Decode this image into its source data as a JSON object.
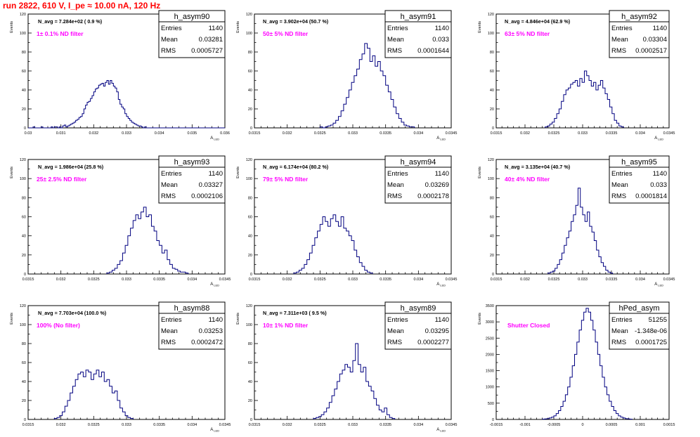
{
  "page": {
    "title": "run 2822,   610 V, I_pe ≈ 10.00 nA, 120 Hz"
  },
  "colors": {
    "title": "#ff0000",
    "annotation": "#ff00ff",
    "histogram_line": "#000080",
    "axis": "#000000"
  },
  "chart_data": [
    {
      "type": "histogram",
      "name": "h_asym90",
      "stats": {
        "Entries": "1140",
        "Mean": "0.03281",
        "RMS": "0.0005727"
      },
      "navg": "N_avg = 7.284e+02 ( 0.9 %)",
      "label": "1± 0.1% ND filter",
      "ylabel": "Events",
      "xlabel": "A_LED",
      "xlim": [
        0.03,
        0.036
      ],
      "ylim": [
        0,
        120
      ],
      "xticks": [
        "0.03",
        "0.031",
        "0.032",
        "0.033",
        "0.034",
        "0.035",
        "0.036"
      ],
      "yticks": [
        "0",
        "20",
        "40",
        "60",
        "80",
        "100",
        "120"
      ],
      "bins": {
        "start": 0.03,
        "width": 5e-05,
        "counts": [
          0,
          0,
          0,
          1,
          0,
          0,
          0,
          0,
          1,
          0,
          0,
          0,
          0,
          0,
          1,
          0,
          1,
          1,
          0,
          1,
          0,
          2,
          3,
          1,
          2,
          3,
          4,
          5,
          6,
          8,
          9,
          11,
          12,
          15,
          20,
          24,
          27,
          28,
          31,
          34,
          38,
          41,
          42,
          45,
          46,
          47,
          44,
          48,
          50,
          46,
          50,
          47,
          44,
          42,
          38,
          30,
          25,
          22,
          20,
          15,
          12,
          10,
          8,
          6,
          5,
          4,
          3,
          2,
          2,
          1,
          0,
          1,
          0,
          0,
          0,
          0,
          0,
          0,
          0,
          0,
          0,
          0,
          0,
          0,
          0,
          0,
          0,
          0,
          0,
          0,
          0,
          0,
          0,
          0,
          0,
          0,
          0,
          0,
          0,
          0,
          0,
          0,
          0,
          0,
          0,
          0,
          0,
          0,
          0,
          0,
          0,
          0,
          0,
          0,
          0,
          0,
          0,
          0,
          0,
          0
        ]
      }
    },
    {
      "type": "histogram",
      "name": "h_asym91",
      "stats": {
        "Entries": "1140",
        "Mean": "0.033",
        "RMS": "0.0001644"
      },
      "navg": "N_avg = 3.902e+04 (50.7 %)",
      "label": "50± 5% ND filter",
      "ylabel": "Events",
      "xlabel": "A_LED",
      "xlim": [
        0.0315,
        0.0345
      ],
      "ylim": [
        0,
        120
      ],
      "xticks": [
        "0.0315",
        "0.032",
        "0.0325",
        "0.033",
        "0.0335",
        "0.034",
        "0.0345"
      ],
      "yticks": [
        "0",
        "20",
        "40",
        "60",
        "80",
        "100",
        "120"
      ],
      "bins": {
        "start": 0.0325,
        "width": 4e-05,
        "counts": [
          1,
          0,
          1,
          2,
          3,
          5,
          8,
          12,
          18,
          25,
          32,
          40,
          48,
          55,
          62,
          72,
          78,
          89,
          84,
          70,
          76,
          65,
          70,
          60,
          55,
          45,
          38,
          30,
          22,
          15,
          10,
          6,
          3,
          2,
          1,
          1
        ]
      }
    },
    {
      "type": "histogram",
      "name": "h_asym92",
      "stats": {
        "Entries": "1140",
        "Mean": "0.03304",
        "RMS": "0.0002517"
      },
      "navg": "N_avg = 4.846e+04 (62.9 %)",
      "label": "63± 5% ND filter",
      "ylabel": "Events",
      "xlabel": "A_LED",
      "xlim": [
        0.0315,
        0.0345
      ],
      "ylim": [
        0,
        120
      ],
      "xticks": [
        "0.0315",
        "0.032",
        "0.0325",
        "0.033",
        "0.0335",
        "0.034",
        "0.0345"
      ],
      "yticks": [
        "0",
        "20",
        "40",
        "60",
        "80",
        "100",
        "120"
      ],
      "bins": {
        "start": 0.03235,
        "width": 4e-05,
        "counts": [
          1,
          2,
          4,
          6,
          10,
          15,
          20,
          28,
          35,
          40,
          42,
          46,
          48,
          50,
          44,
          52,
          48,
          60,
          55,
          50,
          44,
          48,
          40,
          45,
          50,
          42,
          36,
          30,
          22,
          15,
          8,
          5,
          2,
          1
        ]
      }
    },
    {
      "type": "histogram",
      "name": "h_asym93",
      "stats": {
        "Entries": "1140",
        "Mean": "0.03327",
        "RMS": "0.0002106"
      },
      "navg": "N_avg = 1.986e+04 (25.8 %)",
      "label": "25± 2.5% ND filter",
      "ylabel": "Events",
      "xlabel": "A_LED",
      "xlim": [
        0.0315,
        0.0345
      ],
      "ylim": [
        0,
        120
      ],
      "xticks": [
        "0.0315",
        "0.032",
        "0.0325",
        "0.033",
        "0.0335",
        "0.034",
        "0.0345"
      ],
      "yticks": [
        "0",
        "20",
        "40",
        "60",
        "80",
        "100",
        "120"
      ],
      "bins": {
        "start": 0.0327,
        "width": 4e-05,
        "counts": [
          1,
          2,
          4,
          6,
          10,
          14,
          22,
          30,
          40,
          48,
          56,
          62,
          58,
          65,
          70,
          60,
          62,
          50,
          45,
          35,
          30,
          22,
          25,
          15,
          10,
          6,
          5,
          3,
          2,
          2,
          1
        ]
      }
    },
    {
      "type": "histogram",
      "name": "h_asym94",
      "stats": {
        "Entries": "1140",
        "Mean": "0.03269",
        "RMS": "0.0002178"
      },
      "navg": "N_avg = 6.174e+04 (80.2 %)",
      "label": "79± 5% ND filter",
      "ylabel": "Events",
      "xlabel": "A_LED",
      "xlim": [
        0.0315,
        0.0345
      ],
      "ylim": [
        0,
        120
      ],
      "xticks": [
        "0.0315",
        "0.032",
        "0.0325",
        "0.033",
        "0.0335",
        "0.034",
        "0.0345"
      ],
      "yticks": [
        "0",
        "20",
        "40",
        "60",
        "80",
        "100",
        "120"
      ],
      "bins": {
        "start": 0.0321,
        "width": 4e-05,
        "counts": [
          1,
          2,
          4,
          6,
          10,
          15,
          22,
          30,
          38,
          45,
          52,
          60,
          55,
          50,
          58,
          62,
          55,
          50,
          60,
          48,
          45,
          40,
          35,
          25,
          18,
          12,
          8,
          4,
          2,
          1
        ]
      }
    },
    {
      "type": "histogram",
      "name": "h_asym95",
      "stats": {
        "Entries": "1140",
        "Mean": "0.033",
        "RMS": "0.0001814"
      },
      "navg": "N_avg = 3.135e+04 (40.7 %)",
      "label": "40± 4% ND filter",
      "ylabel": "Events",
      "xlabel": "A_LED",
      "xlim": [
        0.0315,
        0.0345
      ],
      "ylim": [
        0,
        120
      ],
      "xticks": [
        "0.0315",
        "0.032",
        "0.0325",
        "0.033",
        "0.0335",
        "0.034",
        "0.0345"
      ],
      "yticks": [
        "0",
        "20",
        "40",
        "60",
        "80",
        "100",
        "120"
      ],
      "bins": {
        "start": 0.0324,
        "width": 4e-05,
        "counts": [
          1,
          2,
          3,
          6,
          10,
          15,
          22,
          30,
          38,
          45,
          55,
          62,
          72,
          90,
          70,
          62,
          55,
          65,
          50,
          44,
          35,
          25,
          18,
          12,
          8,
          4,
          2,
          1
        ]
      }
    },
    {
      "type": "histogram",
      "name": "h_asym88",
      "stats": {
        "Entries": "1140",
        "Mean": "0.03253",
        "RMS": "0.0002472"
      },
      "navg": "N_avg = 7.703e+04 (100.0 %)",
      "label": "100% (No filter)",
      "ylabel": "Events",
      "xlabel": "A_LED",
      "xlim": [
        0.0315,
        0.0345
      ],
      "ylim": [
        0,
        120
      ],
      "xticks": [
        "0.0315",
        "0.032",
        "0.0325",
        "0.033",
        "0.0335",
        "0.034",
        "0.0345"
      ],
      "yticks": [
        "0",
        "20",
        "40",
        "60",
        "80",
        "100",
        "120"
      ],
      "bins": {
        "start": 0.0319,
        "width": 4e-05,
        "counts": [
          1,
          2,
          4,
          8,
          14,
          20,
          28,
          35,
          42,
          48,
          50,
          45,
          52,
          50,
          42,
          48,
          52,
          45,
          50,
          40,
          42,
          35,
          28,
          30,
          20,
          12,
          8,
          4,
          2,
          1
        ]
      }
    },
    {
      "type": "histogram",
      "name": "h_asym89",
      "stats": {
        "Entries": "1140",
        "Mean": "0.03295",
        "RMS": "0.0002277"
      },
      "navg": "N_avg = 7.311e+03 ( 9.5 %)",
      "label": "10± 1% ND filter",
      "ylabel": "Events",
      "xlabel": "A_LED",
      "xlim": [
        0.0315,
        0.0345
      ],
      "ylim": [
        0,
        120
      ],
      "xticks": [
        "0.0315",
        "0.032",
        "0.0325",
        "0.033",
        "0.0335",
        "0.034",
        "0.0345"
      ],
      "yticks": [
        "0",
        "20",
        "40",
        "60",
        "80",
        "100",
        "120"
      ],
      "bins": {
        "start": 0.0324,
        "width": 4e-05,
        "counts": [
          1,
          2,
          3,
          5,
          8,
          12,
          18,
          25,
          32,
          40,
          48,
          52,
          58,
          55,
          50,
          62,
          80,
          58,
          50,
          55,
          40,
          35,
          30,
          22,
          15,
          10,
          8,
          12,
          5,
          2,
          1
        ]
      }
    },
    {
      "type": "histogram",
      "name": "hPed_asym",
      "stats": {
        "Entries": "51255",
        "Mean": "-1.348e-06",
        "RMS": "0.0001725"
      },
      "navg": "",
      "label": "Shutter Closed",
      "ylabel": "Events",
      "xlabel": "",
      "xlim": [
        -0.0015,
        0.0015
      ],
      "ylim": [
        0,
        3500
      ],
      "xticks": [
        "-0.0015",
        "-0.001",
        "-0.0005",
        "0",
        "0.0005",
        "0.001",
        "0.0015"
      ],
      "yticks": [
        "0",
        "500",
        "1000",
        "1500",
        "2000",
        "2500",
        "3000",
        "3500"
      ],
      "bins": {
        "start": -0.0007,
        "width": 4e-05,
        "counts": [
          8,
          15,
          25,
          45,
          70,
          110,
          180,
          270,
          400,
          560,
          760,
          1000,
          1300,
          1650,
          2000,
          2380,
          2750,
          3050,
          3300,
          3420,
          3300,
          3050,
          2750,
          2380,
          2000,
          1650,
          1300,
          1000,
          760,
          560,
          400,
          270,
          180,
          110,
          70,
          45,
          25,
          15,
          8
        ]
      }
    }
  ]
}
